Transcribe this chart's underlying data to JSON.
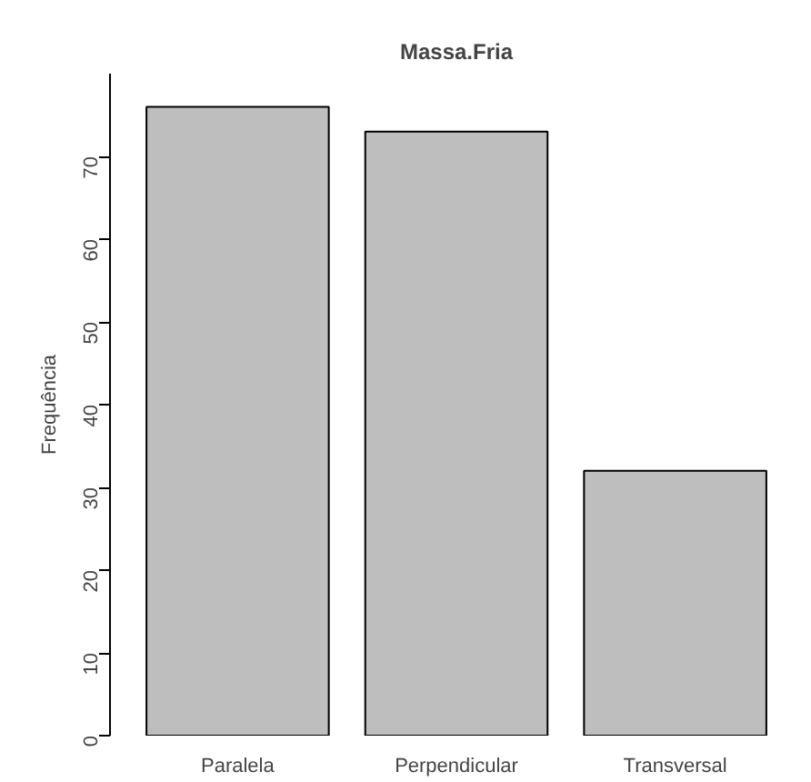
{
  "chart_data": {
    "type": "bar",
    "title": "Massa.Fria",
    "ylabel": "Frequência",
    "categories": [
      "Paralela",
      "Perpendicular",
      "Transversal"
    ],
    "values": [
      76,
      73,
      32
    ],
    "color": "#bebebe",
    "ylim": [
      0,
      80
    ],
    "yticks": [
      0,
      10,
      20,
      30,
      40,
      50,
      60,
      70
    ],
    "grid": false
  }
}
